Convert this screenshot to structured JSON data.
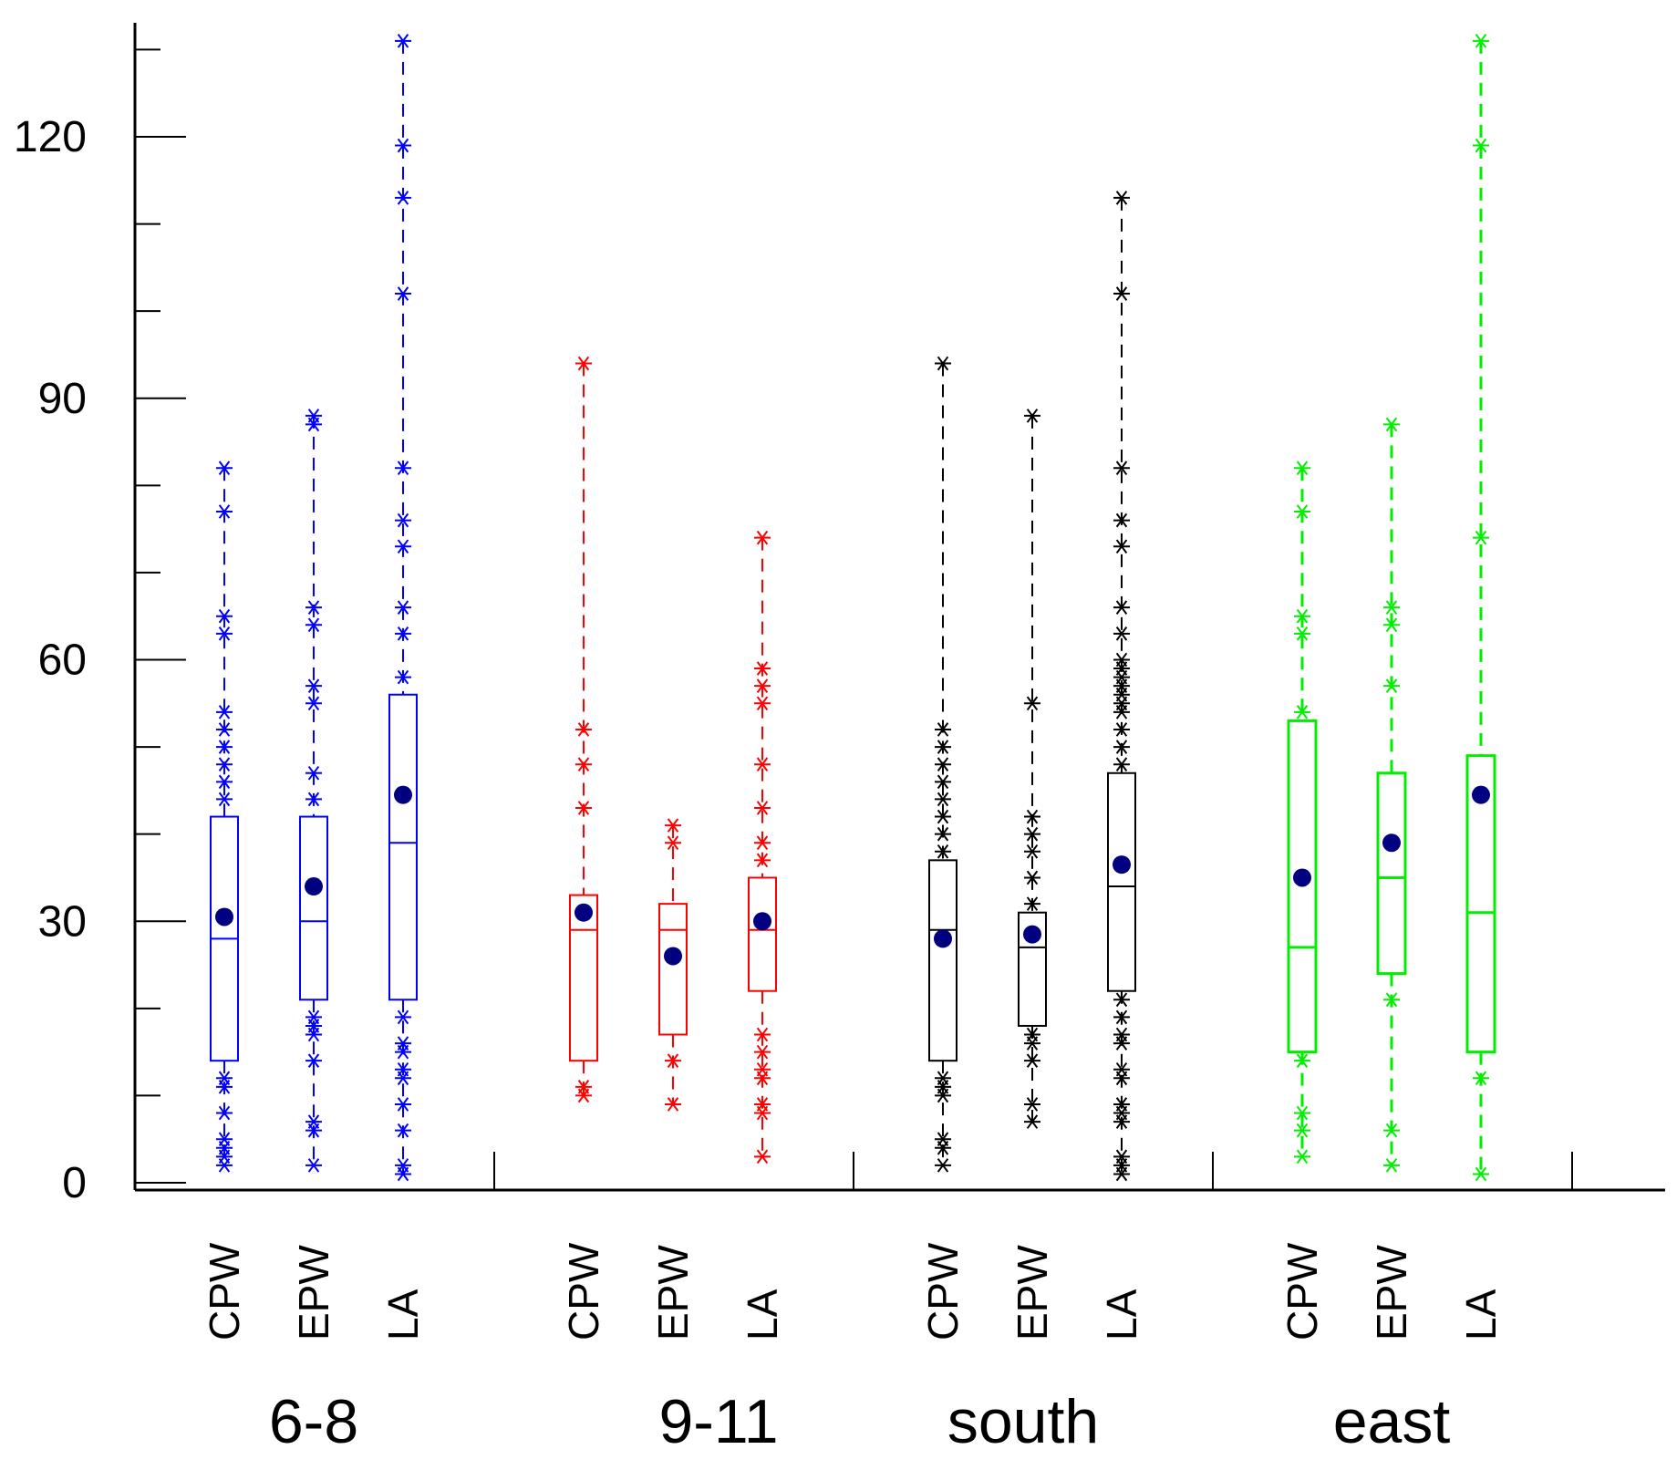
{
  "chart_data": {
    "type": "box",
    "title": "",
    "xlabel": "",
    "ylabel": "",
    "ylim": [
      0,
      131
    ],
    "yticks": [
      0,
      30,
      60,
      90,
      120
    ],
    "categories": [
      "CPW",
      "EPW",
      "LA"
    ],
    "groups": [
      {
        "name": "6-8",
        "color": "#0000ff",
        "boxes": [
          {
            "label": "CPW",
            "q1": 14,
            "median": 28,
            "q3": 42,
            "whisker_low": 2,
            "whisker_high": 82,
            "mean": 30.5,
            "outliers": [
              2,
              3,
              4,
              5,
              8,
              11,
              12,
              44,
              46,
              48,
              50,
              52,
              54,
              63,
              65,
              77,
              82
            ]
          },
          {
            "label": "EPW",
            "q1": 21,
            "median": 30,
            "q3": 42,
            "whisker_low": 2,
            "whisker_high": 88,
            "mean": 34,
            "outliers": [
              2,
              6,
              7,
              14,
              17,
              18,
              19,
              44,
              47,
              55,
              57,
              64,
              66,
              87,
              88
            ]
          },
          {
            "label": "LA",
            "q1": 21,
            "median": 39,
            "q3": 56,
            "whisker_low": 1,
            "whisker_high": 131,
            "mean": 44.5,
            "outliers": [
              1,
              2,
              6,
              9,
              12,
              13,
              15,
              16,
              19,
              58,
              63,
              66,
              73,
              76,
              82,
              102,
              113,
              119,
              131
            ]
          }
        ]
      },
      {
        "name": "9-11",
        "color": "#ff0000",
        "boxes": [
          {
            "label": "CPW",
            "q1": 14,
            "median": 29,
            "q3": 33,
            "whisker_low": 10,
            "whisker_high": 94,
            "mean": 31,
            "outliers": [
              10,
              11,
              43,
              48,
              52,
              94
            ]
          },
          {
            "label": "EPW",
            "q1": 17,
            "median": 29,
            "q3": 32,
            "whisker_low": 9,
            "whisker_high": 41,
            "mean": 26,
            "outliers": [
              9,
              14,
              39,
              41
            ]
          },
          {
            "label": "LA",
            "q1": 22,
            "median": 29,
            "q3": 35,
            "whisker_low": 3,
            "whisker_high": 74,
            "mean": 30,
            "outliers": [
              3,
              8,
              9,
              12,
              13,
              15,
              17,
              37,
              39,
              43,
              48,
              55,
              57,
              59,
              74
            ]
          }
        ]
      },
      {
        "name": "south",
        "color": "#000000",
        "boxes": [
          {
            "label": "CPW",
            "q1": 14,
            "median": 29,
            "q3": 37,
            "whisker_low": 2,
            "whisker_high": 94,
            "mean": 28,
            "outliers": [
              2,
              4,
              5,
              10,
              11,
              12,
              38,
              40,
              42,
              44,
              46,
              48,
              50,
              52,
              94
            ]
          },
          {
            "label": "EPW",
            "q1": 18,
            "median": 27,
            "q3": 31,
            "whisker_low": 7,
            "whisker_high": 88,
            "mean": 28.5,
            "outliers": [
              7,
              9,
              14,
              16,
              17,
              32,
              35,
              38,
              40,
              42,
              55,
              88
            ]
          },
          {
            "label": "LA",
            "q1": 22,
            "median": 34,
            "q3": 47,
            "whisker_low": 1,
            "whisker_high": 113,
            "mean": 36.5,
            "outliers": [
              1,
              2,
              3,
              7,
              8,
              9,
              12,
              13,
              16,
              17,
              19,
              21,
              48,
              50,
              52,
              54,
              55,
              56,
              57,
              58,
              59,
              60,
              63,
              66,
              73,
              76,
              82,
              102,
              113
            ]
          }
        ]
      },
      {
        "name": "east",
        "color": "#00ee00",
        "boxes": [
          {
            "label": "CPW",
            "q1": 15,
            "median": 27,
            "q3": 53,
            "whisker_low": 3,
            "whisker_high": 82,
            "mean": 35,
            "outliers": [
              3,
              6,
              8,
              14,
              54,
              63,
              65,
              77,
              82
            ]
          },
          {
            "label": "EPW",
            "q1": 24,
            "median": 35,
            "q3": 47,
            "whisker_low": 2,
            "whisker_high": 87,
            "mean": 39,
            "outliers": [
              2,
              6,
              21,
              57,
              64,
              66,
              87
            ]
          },
          {
            "label": "LA",
            "q1": 15,
            "median": 31,
            "q3": 49,
            "whisker_low": 1,
            "whisker_high": 131,
            "mean": 44.5,
            "outliers": [
              1,
              12,
              74,
              119,
              131
            ]
          }
        ]
      }
    ],
    "mean_marker_color": "#000080"
  }
}
